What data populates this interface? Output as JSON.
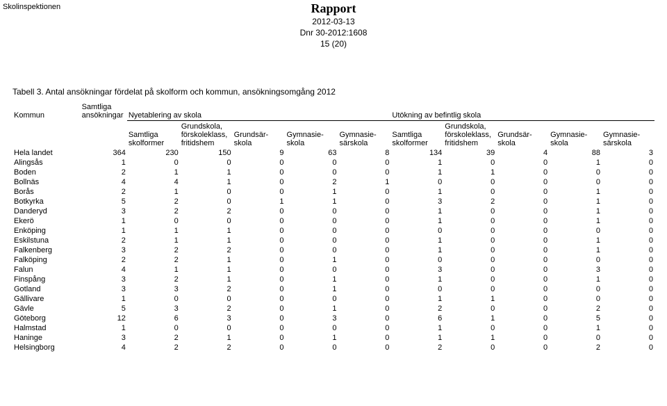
{
  "org_name": "Skolinspektionen",
  "header": {
    "title": "Rapport",
    "date": "2012-03-13",
    "dnr": "Dnr 30-2012:1608",
    "page": "15 (20)"
  },
  "caption": "Tabell 3. Antal ansökningar fördelat på skolform och kommun, ansökningsomgång 2012",
  "group_headers": {
    "kommun": "Kommun",
    "samtliga_ans": "Samtliga ansökningar",
    "nyetab": "Nyetablering av skola",
    "utok": "Utökning av befintlig skola"
  },
  "sub_headers": [
    "Samtliga skolformer",
    "Grundskola, förskoleklass, fritidshem",
    "Grundsär- skola",
    "Gymnasie- skola",
    "Gymnasie- särskola",
    "Samtliga skolformer",
    "Grundskola, förskoleklass, fritidshem",
    "Grundsär- skola",
    "Gymnasie- skola",
    "Gymnasie- särskola"
  ],
  "rows": [
    {
      "k": "Hela landet",
      "a": 364,
      "v": [
        230,
        150,
        9,
        63,
        8,
        134,
        39,
        4,
        88,
        3
      ]
    },
    {
      "k": "Alingsås",
      "a": 1,
      "v": [
        0,
        0,
        0,
        0,
        0,
        1,
        0,
        0,
        1,
        0
      ]
    },
    {
      "k": "Boden",
      "a": 2,
      "v": [
        1,
        1,
        0,
        0,
        0,
        1,
        1,
        0,
        0,
        0
      ]
    },
    {
      "k": "Bollnäs",
      "a": 4,
      "v": [
        4,
        1,
        0,
        2,
        1,
        0,
        0,
        0,
        0,
        0
      ]
    },
    {
      "k": "Borås",
      "a": 2,
      "v": [
        1,
        0,
        0,
        1,
        0,
        1,
        0,
        0,
        1,
        0
      ]
    },
    {
      "k": "Botkyrka",
      "a": 5,
      "v": [
        2,
        0,
        1,
        1,
        0,
        3,
        2,
        0,
        1,
        0
      ]
    },
    {
      "k": "Danderyd",
      "a": 3,
      "v": [
        2,
        2,
        0,
        0,
        0,
        1,
        0,
        0,
        1,
        0
      ]
    },
    {
      "k": "Ekerö",
      "a": 1,
      "v": [
        0,
        0,
        0,
        0,
        0,
        1,
        0,
        0,
        1,
        0
      ]
    },
    {
      "k": "Enköping",
      "a": 1,
      "v": [
        1,
        1,
        0,
        0,
        0,
        0,
        0,
        0,
        0,
        0
      ]
    },
    {
      "k": "Eskilstuna",
      "a": 2,
      "v": [
        1,
        1,
        0,
        0,
        0,
        1,
        0,
        0,
        1,
        0
      ]
    },
    {
      "k": "Falkenberg",
      "a": 3,
      "v": [
        2,
        2,
        0,
        0,
        0,
        1,
        0,
        0,
        1,
        0
      ]
    },
    {
      "k": "Falköping",
      "a": 2,
      "v": [
        2,
        1,
        0,
        1,
        0,
        0,
        0,
        0,
        0,
        0
      ]
    },
    {
      "k": "Falun",
      "a": 4,
      "v": [
        1,
        1,
        0,
        0,
        0,
        3,
        0,
        0,
        3,
        0
      ]
    },
    {
      "k": "Finspång",
      "a": 3,
      "v": [
        2,
        1,
        0,
        1,
        0,
        1,
        0,
        0,
        1,
        0
      ]
    },
    {
      "k": "Gotland",
      "a": 3,
      "v": [
        3,
        2,
        0,
        1,
        0,
        0,
        0,
        0,
        0,
        0
      ]
    },
    {
      "k": "Gällivare",
      "a": 1,
      "v": [
        0,
        0,
        0,
        0,
        0,
        1,
        1,
        0,
        0,
        0
      ]
    },
    {
      "k": "Gävle",
      "a": 5,
      "v": [
        3,
        2,
        0,
        1,
        0,
        2,
        0,
        0,
        2,
        0
      ]
    },
    {
      "k": "Göteborg",
      "a": 12,
      "v": [
        6,
        3,
        0,
        3,
        0,
        6,
        1,
        0,
        5,
        0
      ]
    },
    {
      "k": "Halmstad",
      "a": 1,
      "v": [
        0,
        0,
        0,
        0,
        0,
        1,
        0,
        0,
        1,
        0
      ]
    },
    {
      "k": "Haninge",
      "a": 3,
      "v": [
        2,
        1,
        0,
        1,
        0,
        1,
        1,
        0,
        0,
        0
      ]
    },
    {
      "k": "Helsingborg",
      "a": 4,
      "v": [
        2,
        2,
        0,
        0,
        0,
        2,
        0,
        0,
        2,
        0
      ]
    }
  ]
}
